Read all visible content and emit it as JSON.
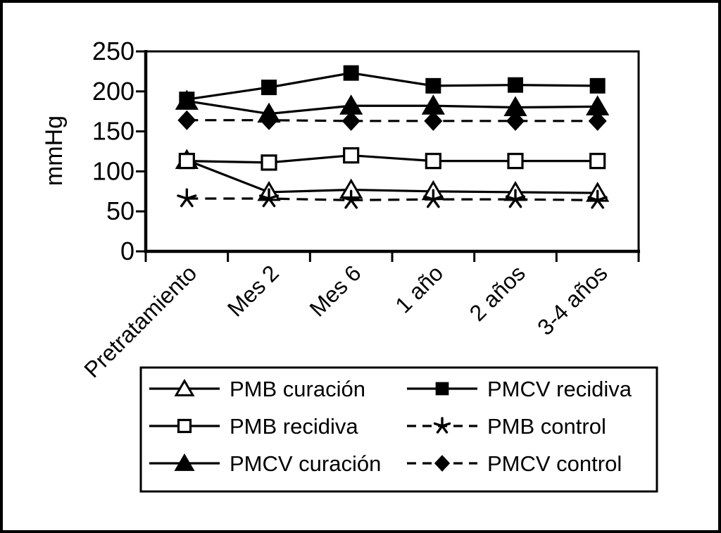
{
  "figure": {
    "background_color": "#ffffff",
    "border_color": "#000000",
    "ink_color": "#000000"
  },
  "chart_data": {
    "type": "line",
    "title": "",
    "xlabel": "",
    "ylabel": "mmHg",
    "ylim": [
      0,
      250
    ],
    "yticks": [
      0,
      50,
      100,
      150,
      200,
      250
    ],
    "grid": false,
    "legend_position": "bottom-box-two-columns",
    "categories": [
      "Pretratamiento",
      "Mes 2",
      "Mes 6",
      "1 año",
      "2 años",
      "3-4 años"
    ],
    "series": [
      {
        "name": "PMB curación",
        "marker": "triangle-open",
        "line": "solid",
        "values": [
          114,
          74,
          77,
          75,
          74,
          73
        ]
      },
      {
        "name": "PMB recidiva",
        "marker": "square-open",
        "line": "solid",
        "values": [
          113,
          111,
          120,
          113,
          113,
          113
        ]
      },
      {
        "name": "PMCV curación",
        "marker": "triangle-filled",
        "line": "solid",
        "values": [
          188,
          172,
          182,
          182,
          180,
          181
        ]
      },
      {
        "name": "PMCV recidiva",
        "marker": "square-filled",
        "line": "solid",
        "values": [
          190,
          205,
          223,
          207,
          208,
          207
        ]
      },
      {
        "name": "PMB control",
        "marker": "star",
        "line": "dashed",
        "values": [
          66,
          66,
          64,
          65,
          65,
          64
        ]
      },
      {
        "name": "PMCV control",
        "marker": "diamond-filled",
        "line": "dashed",
        "values": [
          164,
          164,
          163,
          163,
          163,
          163
        ]
      }
    ]
  }
}
